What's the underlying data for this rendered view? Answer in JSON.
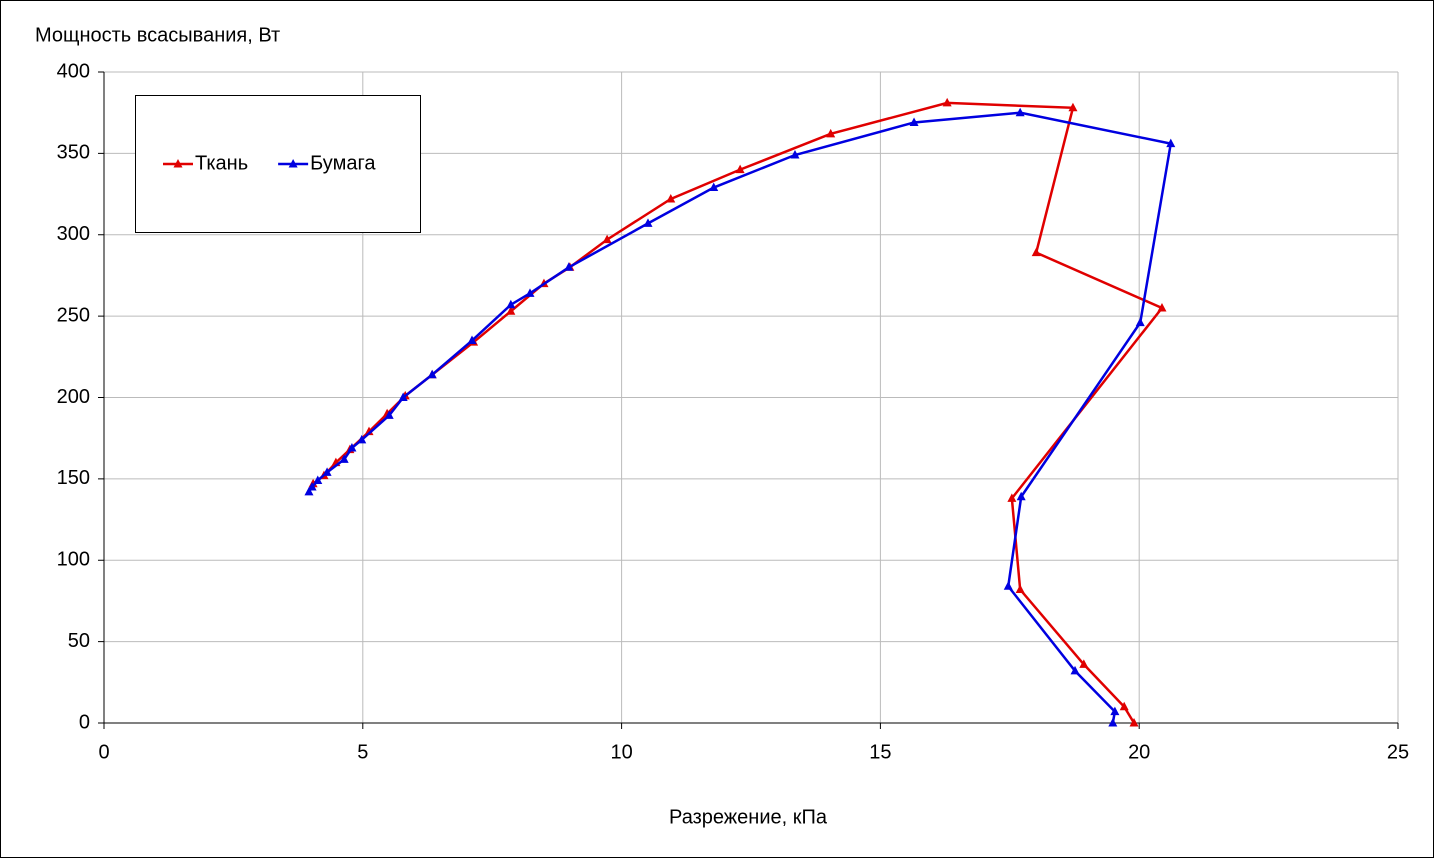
{
  "chart_data": {
    "type": "line",
    "y_label": "Мощность всасывания, Вт",
    "x_label": "Разрежение, кПа",
    "xlim": [
      0,
      25
    ],
    "xticks": [
      0,
      5,
      10,
      15,
      20,
      25
    ],
    "ylim": [
      0,
      400
    ],
    "yticks": [
      0,
      50,
      100,
      150,
      200,
      250,
      300,
      350,
      400
    ],
    "grid": true,
    "legend": "upper left",
    "series": [
      {
        "name": "Ткань",
        "color": "#e00000",
        "x": [
          4.04,
          4.25,
          4.48,
          4.75,
          5.12,
          5.47,
          5.82,
          6.34,
          7.14,
          7.86,
          8.5,
          9.0,
          9.72,
          10.95,
          12.29,
          14.04,
          16.29,
          18.72,
          18.01,
          20.44,
          17.54,
          17.7,
          18.93,
          19.71,
          19.9
        ],
        "values": [
          147,
          152,
          160,
          168,
          179,
          190,
          201,
          214,
          234,
          253,
          270,
          280,
          297,
          322,
          340,
          362,
          381,
          378,
          289,
          255,
          138,
          82,
          36,
          10,
          0
        ]
      },
      {
        "name": "Бумага",
        "color": "#0000e0",
        "x": [
          3.96,
          4.02,
          4.13,
          4.31,
          4.64,
          4.79,
          4.98,
          5.51,
          5.78,
          6.34,
          7.11,
          7.86,
          8.23,
          8.98,
          10.51,
          11.78,
          13.35,
          15.65,
          17.7,
          20.61,
          20.02,
          17.72,
          17.47,
          18.76,
          19.53,
          19.49
        ],
        "values": [
          142,
          145,
          149,
          154,
          162,
          169,
          174,
          189,
          200,
          214,
          235,
          257,
          264,
          280,
          307,
          329,
          349,
          369,
          375,
          356,
          246,
          139,
          84,
          32,
          7,
          0
        ]
      }
    ]
  }
}
